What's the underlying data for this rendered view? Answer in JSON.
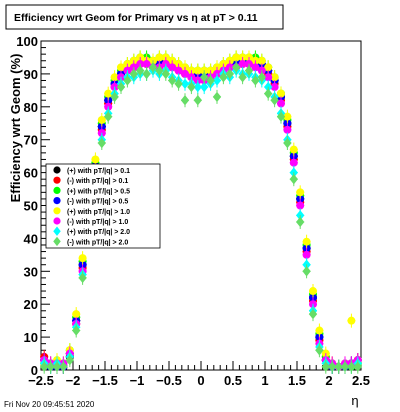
{
  "title": "Efficiency wrt Geom for Primary vs   η at pT > 0.11",
  "timestamp": "Fri Nov 20 09:45:51 2020",
  "colors": {
    "frame": "#000000",
    "title_box_bg": "#ffffff",
    "plot_bg": "#ffffff"
  },
  "chart_data": {
    "type": "scatter",
    "title": "Efficiency wrt Geom for Primary vs   η at pT > 0.11",
    "xlabel": "η",
    "ylabel": "Efficiency wrt Geom (%)",
    "xlim": [
      -2.5,
      2.5
    ],
    "ylim": [
      0,
      100
    ],
    "x_ticks": [
      -2.5,
      -2,
      -1.5,
      -1,
      -0.5,
      0,
      0.5,
      1,
      1.5,
      2,
      2.5
    ],
    "x_tick_labels": [
      "−2.5",
      "−2",
      "−1.5",
      "−1",
      "−0.5",
      "0",
      "0.5",
      "1",
      "1.5",
      "2",
      "2.5"
    ],
    "y_ticks": [
      0,
      10,
      20,
      30,
      40,
      50,
      60,
      70,
      80,
      90,
      100
    ],
    "y_tick_labels": [
      "0",
      "10",
      "20",
      "30",
      "40",
      "50",
      "60",
      "70",
      "80",
      "90",
      "100"
    ],
    "grid": false,
    "legend_position": "left-middle",
    "x": [
      -2.45,
      -2.35,
      -2.25,
      -2.15,
      -2.05,
      -1.95,
      -1.85,
      -1.75,
      -1.65,
      -1.55,
      -1.45,
      -1.35,
      -1.25,
      -1.15,
      -1.05,
      -0.95,
      -0.85,
      -0.75,
      -0.65,
      -0.55,
      -0.45,
      -0.35,
      -0.25,
      -0.15,
      -0.05,
      0.05,
      0.15,
      0.25,
      0.35,
      0.45,
      0.55,
      0.65,
      0.75,
      0.85,
      0.95,
      1.05,
      1.15,
      1.25,
      1.35,
      1.45,
      1.55,
      1.65,
      1.75,
      1.85,
      1.95,
      2.05,
      2.15,
      2.25,
      2.35,
      2.45
    ],
    "series": [
      {
        "name": "(+) with pT/|q| > 0.1",
        "color": "#000000",
        "marker": "circle",
        "values": [
          3,
          2,
          1,
          1,
          4,
          15,
          32,
          48,
          62,
          74,
          82,
          87,
          90,
          92,
          93,
          94,
          94,
          93,
          94,
          94,
          93,
          92,
          91,
          90,
          90,
          90,
          90,
          91,
          92,
          93,
          94,
          94,
          94,
          94,
          93,
          91,
          88,
          83,
          75,
          65,
          52,
          37,
          22,
          10,
          3,
          1,
          1,
          1,
          2,
          3
        ]
      },
      {
        "name": "(-) with pT/|q| > 0.1",
        "color": "#ff0000",
        "marker": "circle",
        "values": [
          4,
          2,
          2,
          1,
          5,
          14,
          31,
          47,
          61,
          73,
          81,
          86,
          89,
          91,
          92,
          93,
          93,
          92,
          93,
          93,
          92,
          91,
          90,
          89,
          89,
          89,
          89,
          90,
          91,
          92,
          93,
          93,
          93,
          93,
          92,
          90,
          87,
          82,
          74,
          64,
          51,
          36,
          21,
          9,
          3,
          2,
          1,
          1,
          2,
          3
        ]
      },
      {
        "name": "(+) with pT/|q| > 0.5",
        "color": "#00ff00",
        "marker": "circle",
        "values": [
          2,
          1,
          1,
          2,
          6,
          16,
          33,
          49,
          63,
          75,
          83,
          88,
          91,
          93,
          94,
          95,
          95,
          94,
          95,
          95,
          94,
          93,
          92,
          91,
          91,
          91,
          91,
          92,
          93,
          94,
          95,
          95,
          95,
          95,
          94,
          92,
          89,
          84,
          76,
          66,
          53,
          38,
          23,
          11,
          4,
          1,
          1,
          1,
          1,
          2
        ]
      },
      {
        "name": "(-) with pT/|q| > 0.5",
        "color": "#0000ff",
        "marker": "circle",
        "values": [
          3,
          1,
          1,
          1,
          5,
          15,
          32,
          48,
          62,
          74,
          82,
          87,
          90,
          92,
          93,
          94,
          94,
          93,
          94,
          94,
          93,
          92,
          91,
          90,
          90,
          90,
          90,
          91,
          92,
          93,
          94,
          94,
          94,
          94,
          93,
          91,
          88,
          83,
          75,
          65,
          52,
          37,
          22,
          10,
          3,
          1,
          1,
          1,
          2,
          3
        ]
      },
      {
        "name": "(+) with pT/|q| > 1.0",
        "color": "#ffff00",
        "marker": "circle",
        "values": [
          2,
          2,
          3,
          2,
          6,
          17,
          34,
          50,
          64,
          76,
          84,
          89,
          92,
          93,
          94,
          95,
          94,
          94,
          95,
          95,
          94,
          93,
          92,
          91,
          91,
          91,
          91,
          92,
          93,
          94,
          95,
          95,
          95,
          94,
          94,
          92,
          89,
          84,
          77,
          67,
          54,
          39,
          24,
          12,
          5,
          2,
          1,
          2,
          15,
          3
        ]
      },
      {
        "name": "(-) with pT/|q| > 1.0",
        "color": "#ff00ff",
        "marker": "circle",
        "values": [
          3,
          2,
          2,
          2,
          5,
          14,
          30,
          46,
          60,
          72,
          80,
          86,
          89,
          91,
          92,
          93,
          93,
          92,
          92,
          93,
          92,
          91,
          90,
          89,
          88,
          88,
          89,
          90,
          91,
          92,
          92,
          93,
          93,
          92,
          91,
          89,
          86,
          81,
          73,
          63,
          50,
          35,
          20,
          8,
          3,
          2,
          1,
          2,
          2,
          3
        ]
      },
      {
        "name": "(+) with pT/|q| > 2.0",
        "color": "#00ffff",
        "marker": "diamond",
        "values": [
          2,
          1,
          2,
          1,
          4,
          13,
          29,
          44,
          58,
          70,
          78,
          84,
          87,
          89,
          89,
          90,
          90,
          91,
          90,
          91,
          89,
          88,
          87,
          87,
          86,
          86,
          87,
          88,
          90,
          89,
          91,
          90,
          90,
          89,
          88,
          86,
          83,
          78,
          70,
          60,
          47,
          32,
          18,
          7,
          2,
          1,
          1,
          1,
          1,
          2
        ]
      },
      {
        "name": "(-) with pT/|q| > 2.0",
        "color": "#66dd66",
        "marker": "diamond",
        "values": [
          1,
          1,
          1,
          1,
          3,
          12,
          28,
          43,
          57,
          69,
          77,
          83,
          86,
          88,
          90,
          91,
          90,
          92,
          91,
          90,
          88,
          87,
          82,
          86,
          82,
          89,
          88,
          83,
          89,
          90,
          92,
          89,
          91,
          88,
          89,
          84,
          82,
          77,
          69,
          58,
          45,
          30,
          17,
          6,
          1,
          1,
          1,
          1,
          1,
          1
        ]
      }
    ]
  }
}
